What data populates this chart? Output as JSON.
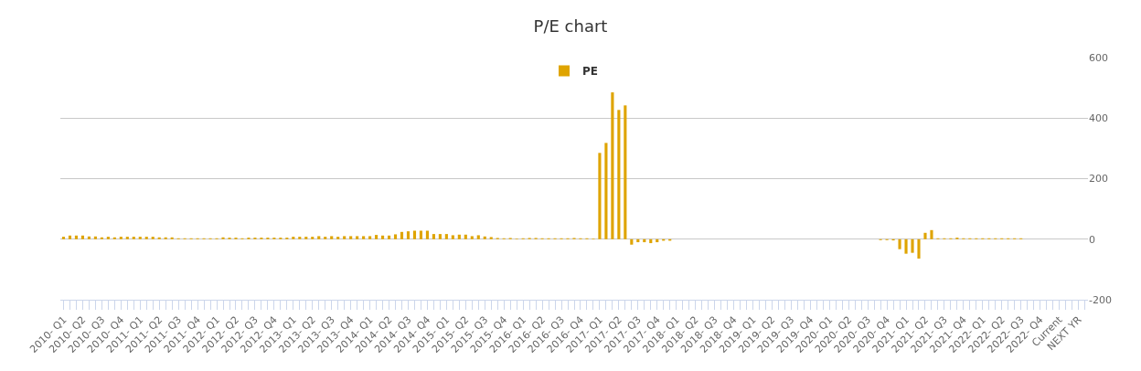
{
  "chart_data": {
    "type": "bar",
    "title": "P/E chart",
    "categories": [
      "2010- Q1",
      null,
      null,
      "2010- Q2",
      null,
      null,
      "2010- Q3",
      null,
      null,
      "2010- Q4",
      null,
      null,
      "2011- Q1",
      null,
      null,
      "2011- Q2",
      null,
      null,
      "2011- Q3",
      null,
      null,
      "2011- Q4",
      null,
      null,
      "2012- Q1",
      null,
      null,
      "2012- Q2",
      null,
      null,
      "2012- Q3",
      null,
      null,
      "2012- Q4",
      null,
      null,
      "2013- Q1",
      null,
      null,
      "2013- Q2",
      null,
      null,
      "2013- Q3",
      null,
      null,
      "2013- Q4",
      null,
      null,
      "2014- Q1",
      null,
      null,
      "2014- Q2",
      null,
      null,
      "2014- Q3",
      null,
      null,
      "2014- Q4",
      null,
      null,
      "2015- Q1",
      null,
      null,
      "2015- Q2",
      null,
      null,
      "2015- Q3",
      null,
      null,
      "2015- Q4",
      null,
      null,
      "2016- Q1",
      null,
      null,
      "2016- Q2",
      null,
      null,
      "2016- Q3",
      null,
      null,
      "2016- Q4",
      null,
      null,
      "2017- Q1",
      null,
      null,
      "2017- Q2",
      null,
      null,
      "2017- Q3",
      null,
      null,
      "2017- Q4",
      null,
      null,
      "2018- Q1",
      null,
      null,
      "2018- Q2",
      null,
      null,
      "2018- Q3",
      null,
      null,
      "2018- Q4",
      null,
      null,
      "2019- Q1",
      null,
      null,
      "2019- Q2",
      null,
      null,
      "2019- Q3",
      null,
      null,
      "2019- Q4",
      null,
      null,
      "2020- Q1",
      null,
      null,
      "2020- Q2",
      null,
      null,
      "2020- Q3",
      null,
      null,
      "2020- Q4",
      null,
      null,
      "2021- Q1",
      null,
      null,
      "2021- Q2",
      null,
      null,
      "2021- Q3",
      null,
      null,
      "2021- Q4",
      null,
      null,
      "2022- Q1",
      null,
      null,
      "2022- Q2",
      null,
      null,
      "2022- Q3",
      null,
      null,
      "2022- Q4",
      null,
      null,
      "Current",
      null,
      null,
      "NEXT YR",
      null
    ],
    "series": [
      {
        "name": "PE",
        "color": "#dfa400",
        "values": [
          8,
          12,
          12,
          12,
          9,
          9,
          6,
          8,
          6,
          8,
          8,
          8,
          8,
          8,
          8,
          6,
          6,
          6,
          3,
          3,
          3,
          3,
          3,
          3,
          3,
          6,
          5,
          5,
          3,
          5,
          5,
          5,
          5,
          5,
          5,
          5,
          8,
          8,
          8,
          8,
          10,
          8,
          10,
          8,
          10,
          10,
          10,
          10,
          10,
          14,
          12,
          12,
          16,
          24,
          26,
          28,
          28,
          28,
          17,
          17,
          17,
          13,
          15,
          15,
          10,
          13,
          9,
          7,
          4,
          3,
          4,
          2,
          3,
          4,
          4,
          3,
          3,
          3,
          3,
          3,
          4,
          3,
          3,
          2,
          285,
          318,
          485,
          427,
          442,
          -18,
          -10,
          -10,
          -13,
          -10,
          -5,
          -5,
          null,
          null,
          null,
          null,
          null,
          null,
          null,
          null,
          null,
          null,
          null,
          null,
          null,
          null,
          null,
          null,
          null,
          null,
          null,
          null,
          null,
          null,
          null,
          null,
          null,
          null,
          null,
          null,
          null,
          null,
          null,
          null,
          -3,
          -3,
          -4,
          -33,
          -48,
          -45,
          -64,
          21,
          30,
          3,
          3,
          3,
          5,
          3,
          3,
          3,
          3,
          3,
          3,
          3,
          3,
          3,
          3,
          null,
          null,
          null,
          null,
          null,
          null,
          null,
          null,
          null,
          null
        ]
      }
    ],
    "ylim": [
      -200,
      600
    ],
    "yticks": [
      -200,
      0,
      200,
      400,
      600
    ],
    "grid": "y",
    "legend": "top"
  }
}
